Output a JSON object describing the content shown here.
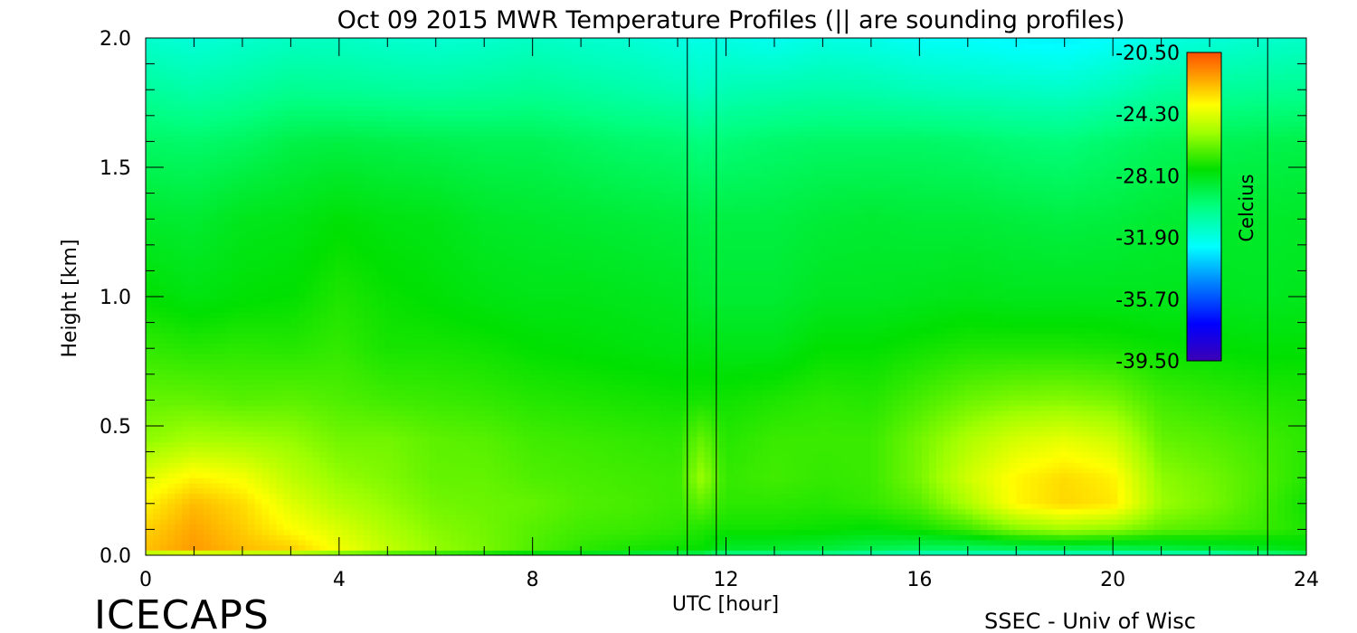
{
  "chart_data": {
    "type": "heatmap",
    "title": "Oct 09 2015 MWR Temperature Profiles (|| are sounding profiles)",
    "xlabel": "UTC [hour]",
    "ylabel": "Height [km]",
    "xlim": [
      0,
      24
    ],
    "ylim": [
      0,
      2.0
    ],
    "x_ticks": [
      "0",
      "4",
      "8",
      "12",
      "16",
      "20",
      "24"
    ],
    "y_ticks": [
      "0.0",
      "0.5",
      "1.0",
      "1.5",
      "2.0"
    ],
    "colorbar": {
      "label": "Celcius",
      "range": [
        -39.5,
        -20.5
      ],
      "tick_labels": [
        "-20.50",
        "-24.30",
        "-28.10",
        "-31.90",
        "-35.70",
        "-39.50"
      ]
    },
    "sounding_times": [
      11.2,
      11.8,
      23.2
    ],
    "heights_km": [
      0.0,
      0.02,
      0.1,
      0.2,
      0.3,
      0.45,
      0.6,
      0.8,
      1.0,
      1.3,
      1.6,
      1.8,
      2.0
    ],
    "times_hour": [
      0,
      1,
      2,
      3,
      4,
      5,
      6,
      7,
      8,
      9,
      10,
      11,
      11.5,
      12,
      13,
      14,
      15,
      16,
      17,
      18,
      19,
      20,
      21,
      22,
      23,
      24
    ],
    "temperature_c": [
      [
        -27,
        -22.6,
        -22.9,
        -23.5,
        -24.3,
        -25.7,
        -26.3,
        -27,
        -27.7,
        -28.5,
        -29.5,
        -30.5,
        -31.5
      ],
      [
        -27,
        -21.9,
        -22.1,
        -22.5,
        -23.5,
        -25.3,
        -26.3,
        -27.2,
        -28,
        -28.6,
        -29.6,
        -30.8,
        -31.7
      ],
      [
        -27,
        -22.5,
        -22.8,
        -23.1,
        -23.9,
        -25.4,
        -26.5,
        -27.1,
        -27.8,
        -28.2,
        -29.4,
        -30.6,
        -31.5
      ],
      [
        -27,
        -22.8,
        -23.7,
        -24.3,
        -24.9,
        -25.6,
        -26.4,
        -27.2,
        -27.7,
        -28.1,
        -29,
        -30.3,
        -31.3
      ],
      [
        -27.5,
        -23.9,
        -24.4,
        -25.1,
        -25.6,
        -26.1,
        -26.6,
        -27,
        -27.3,
        -27.8,
        -28.9,
        -30.4,
        -31.3
      ],
      [
        -28,
        -24.8,
        -25.2,
        -25.6,
        -25.9,
        -26.1,
        -26.8,
        -27.4,
        -27.6,
        -28,
        -29,
        -30.5,
        -31.5
      ],
      [
        -28,
        -25.6,
        -25.8,
        -26.1,
        -26.3,
        -26.4,
        -26.9,
        -27.4,
        -27.8,
        -28.1,
        -29.1,
        -30.6,
        -31.6
      ],
      [
        -28.5,
        -26,
        -26.1,
        -26.2,
        -26.3,
        -26.5,
        -27,
        -27.5,
        -28,
        -28.4,
        -29.2,
        -30.5,
        -31.5
      ],
      [
        -29,
        -26.6,
        -26.5,
        -26.3,
        -26.6,
        -26.8,
        -27.2,
        -27.7,
        -28.1,
        -28.5,
        -29.2,
        -30.4,
        -31.3
      ],
      [
        -29,
        -27.1,
        -26.8,
        -26.6,
        -26.7,
        -26.9,
        -27.3,
        -27.8,
        -28.1,
        -28.6,
        -29.4,
        -30.6,
        -31.5
      ],
      [
        -29.5,
        -27.4,
        -26.9,
        -26.7,
        -26.8,
        -27,
        -27.4,
        -27.9,
        -28.2,
        -28.7,
        -29.6,
        -30.8,
        -31.6
      ],
      [
        -30,
        -27.6,
        -27.1,
        -26.9,
        -26.9,
        -27.1,
        -27.5,
        -28,
        -28.3,
        -28.8,
        -29.7,
        -31,
        -31.9
      ],
      [
        -30,
        -27.7,
        -27.3,
        -26.4,
        -25.5,
        -26.3,
        -27.4,
        -28,
        -28.6,
        -29,
        -30,
        -31.3,
        -32
      ],
      [
        -31,
        -28.5,
        -27.5,
        -27.1,
        -27,
        -27.2,
        -27.5,
        -28.1,
        -28.6,
        -28.9,
        -29.8,
        -31,
        -31.9
      ],
      [
        -31,
        -28.6,
        -27.5,
        -27.1,
        -26.8,
        -26.9,
        -27.3,
        -28.1,
        -28.6,
        -28.9,
        -29.6,
        -30.9,
        -32.2
      ],
      [
        -31,
        -28.8,
        -27.6,
        -27.2,
        -27,
        -26.9,
        -27.1,
        -27.7,
        -28.3,
        -28.7,
        -29.5,
        -30.8,
        -31.9
      ],
      [
        -31.5,
        -29.2,
        -27.8,
        -27,
        -26.9,
        -26.9,
        -27.2,
        -27.7,
        -28.3,
        -28.6,
        -29.5,
        -30.9,
        -32
      ],
      [
        -32,
        -29.5,
        -27.5,
        -26.5,
        -26,
        -26.1,
        -26.7,
        -27.5,
        -28.2,
        -28.7,
        -29.5,
        -31.1,
        -32.3
      ],
      [
        -32,
        -29.6,
        -26.9,
        -25.2,
        -24.6,
        -25.2,
        -26.2,
        -27.3,
        -28.1,
        -28.7,
        -29.6,
        -31.2,
        -32.4
      ],
      [
        -32,
        -29.5,
        -25.9,
        -23.6,
        -23.6,
        -24.5,
        -25.9,
        -27.3,
        -28.2,
        -28.8,
        -29.8,
        -31.3,
        -32.6
      ],
      [
        -32,
        -29.4,
        -25.4,
        -23,
        -23.1,
        -24.2,
        -25.8,
        -27.3,
        -28.2,
        -28.9,
        -29.9,
        -31.4,
        -32.7
      ],
      [
        -32,
        -29.4,
        -25.7,
        -23.3,
        -23.5,
        -24.6,
        -26,
        -27.4,
        -28.2,
        -28.8,
        -29.6,
        -31.1,
        -32.4
      ],
      [
        -32,
        -29.1,
        -26.4,
        -25.5,
        -25.7,
        -26.3,
        -26.8,
        -27.6,
        -28.2,
        -28.6,
        -29.3,
        -30.6,
        -31.9
      ],
      [
        -32,
        -28.8,
        -26.6,
        -26,
        -26.1,
        -26.5,
        -27,
        -27.7,
        -28.2,
        -28.5,
        -29.2,
        -30.5,
        -31.7
      ],
      [
        -31,
        -28.5,
        -26.9,
        -26.7,
        -26.6,
        -26.8,
        -27.2,
        -27.8,
        -28.3,
        -28.5,
        -29.1,
        -30.4,
        -31.5
      ],
      [
        -30,
        -28,
        -27.3,
        -27.5,
        -27.2,
        -27.1,
        -27.3,
        -27.8,
        -28.2,
        -28.4,
        -29,
        -30.3,
        -31.4
      ]
    ]
  },
  "watermark_left": "ICECAPS",
  "watermark_right": "SSEC - Univ of Wisc"
}
